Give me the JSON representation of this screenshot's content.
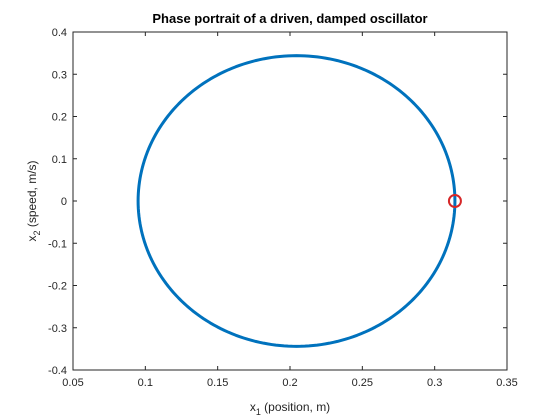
{
  "chart_data": {
    "type": "line",
    "title": "Phase portrait of a driven, damped oscillator",
    "xlabel_main": "x",
    "xlabel_sub": "1",
    "xlabel_rest": " (position, m)",
    "ylabel_main": "x",
    "ylabel_sub": "2",
    "ylabel_rest": " (speed, m/s)",
    "xlim": [
      0.05,
      0.35
    ],
    "ylim": [
      -0.4,
      0.4
    ],
    "xticks": [
      0.05,
      0.1,
      0.15,
      0.2,
      0.25,
      0.3,
      0.35
    ],
    "xtick_labels": [
      "0.05",
      "0.1",
      "0.15",
      "0.2",
      "0.25",
      "0.3",
      "0.35"
    ],
    "yticks": [
      -0.4,
      -0.3,
      -0.2,
      -0.1,
      0,
      0.1,
      0.2,
      0.3,
      0.4
    ],
    "ytick_labels": [
      "-0.4",
      "-0.3",
      "-0.2",
      "-0.1",
      "0",
      "0.1",
      "0.2",
      "0.3",
      "0.4"
    ],
    "grid": false,
    "series": [
      {
        "kind": "closed-orbit",
        "color": "#0072BD",
        "center": [
          0.2045,
          0.0
        ],
        "semi_axis_x": 0.1095,
        "semi_axis_y": 0.344
      }
    ],
    "marker": {
      "shape": "circle",
      "color": "#D62728",
      "x": 0.314,
      "y": 0.0
    }
  }
}
